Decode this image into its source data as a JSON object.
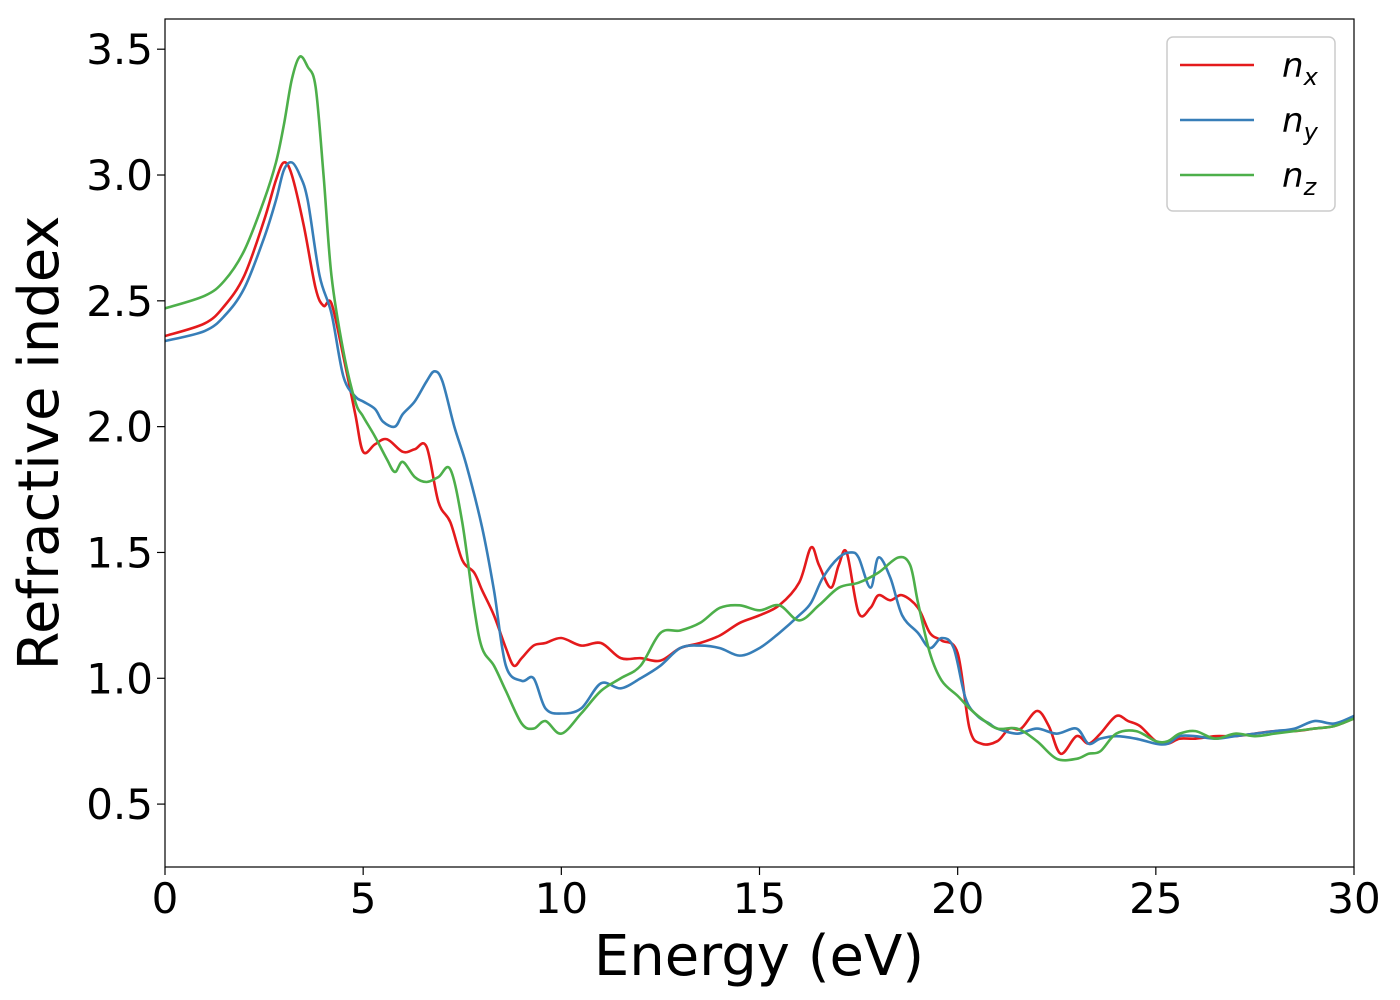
{
  "chart_data": {
    "type": "line",
    "title": "",
    "xlabel": "Energy (eV)",
    "ylabel": "Refractive index",
    "xlim": [
      0,
      30
    ],
    "ylim": [
      0.25,
      3.62
    ],
    "xticks": [
      0,
      5,
      10,
      15,
      20,
      25,
      30
    ],
    "xtick_labels": [
      "0",
      "5",
      "10",
      "15",
      "20",
      "25",
      "30"
    ],
    "yticks": [
      0.5,
      1.0,
      1.5,
      2.0,
      2.5,
      3.0,
      3.5
    ],
    "ytick_labels": [
      "0.5",
      "1.0",
      "1.5",
      "2.0",
      "2.5",
      "3.0",
      "3.5"
    ],
    "grid": false,
    "legend_position": "top-right",
    "series": [
      {
        "name": "n_x",
        "label_main": "n",
        "label_sub": "x",
        "color": "#e41a1c",
        "x": [
          0,
          1,
          1.5,
          2,
          2.5,
          2.8,
          3.0,
          3.2,
          3.5,
          3.8,
          4.0,
          4.2,
          4.5,
          4.8,
          5.0,
          5.3,
          5.6,
          6.0,
          6.3,
          6.6,
          6.9,
          7.2,
          7.5,
          7.8,
          8.0,
          8.3,
          8.6,
          8.8,
          9.0,
          9.3,
          9.6,
          10.0,
          10.5,
          11.0,
          11.5,
          12.0,
          12.5,
          13.0,
          13.5,
          14.0,
          14.5,
          15.0,
          15.5,
          16.0,
          16.3,
          16.5,
          16.8,
          17.0,
          17.2,
          17.5,
          17.8,
          18.0,
          18.3,
          18.6,
          19.0,
          19.3,
          19.6,
          20.0,
          20.3,
          20.6,
          21.0,
          21.3,
          21.6,
          22.0,
          22.3,
          22.6,
          23.0,
          23.3,
          23.6,
          24.0,
          24.3,
          24.6,
          25.0,
          25.3,
          25.6,
          26.0,
          26.5,
          27.0,
          27.5,
          28.0,
          28.5,
          29.0,
          29.5,
          30.0
        ],
        "y": [
          2.36,
          2.41,
          2.48,
          2.6,
          2.82,
          2.98,
          3.05,
          3.0,
          2.8,
          2.55,
          2.48,
          2.49,
          2.28,
          2.05,
          1.9,
          1.93,
          1.95,
          1.9,
          1.91,
          1.92,
          1.7,
          1.62,
          1.47,
          1.42,
          1.35,
          1.25,
          1.12,
          1.05,
          1.08,
          1.13,
          1.14,
          1.16,
          1.13,
          1.14,
          1.08,
          1.08,
          1.07,
          1.12,
          1.14,
          1.17,
          1.22,
          1.25,
          1.29,
          1.38,
          1.52,
          1.45,
          1.36,
          1.45,
          1.5,
          1.26,
          1.28,
          1.33,
          1.31,
          1.33,
          1.28,
          1.18,
          1.15,
          1.1,
          0.8,
          0.74,
          0.75,
          0.8,
          0.8,
          0.87,
          0.81,
          0.7,
          0.77,
          0.74,
          0.78,
          0.85,
          0.83,
          0.81,
          0.75,
          0.74,
          0.76,
          0.76,
          0.77,
          0.77,
          0.78,
          0.79,
          0.79,
          0.8,
          0.81,
          0.84
        ]
      },
      {
        "name": "n_y",
        "label_main": "n",
        "label_sub": "y",
        "color": "#377eb8",
        "x": [
          0,
          1,
          1.5,
          2,
          2.5,
          2.8,
          3.0,
          3.2,
          3.4,
          3.6,
          3.9,
          4.2,
          4.5,
          4.8,
          5.0,
          5.3,
          5.5,
          5.8,
          6.0,
          6.3,
          6.6,
          6.8,
          7.0,
          7.3,
          7.6,
          8.0,
          8.3,
          8.6,
          9.0,
          9.3,
          9.6,
          10.0,
          10.5,
          11.0,
          11.5,
          12.0,
          12.5,
          13.0,
          13.5,
          14.0,
          14.5,
          15.0,
          15.5,
          16.0,
          16.3,
          16.6,
          17.0,
          17.3,
          17.5,
          17.8,
          18.0,
          18.3,
          18.6,
          19.0,
          19.3,
          19.6,
          19.9,
          20.2,
          20.5,
          20.8,
          21.0,
          21.5,
          22.0,
          22.5,
          23.0,
          23.3,
          23.6,
          24.0,
          24.5,
          25.0,
          25.3,
          25.6,
          26.0,
          26.5,
          27.0,
          27.5,
          28.0,
          28.5,
          29.0,
          29.5,
          30.0
        ],
        "y": [
          2.34,
          2.38,
          2.44,
          2.55,
          2.75,
          2.9,
          3.02,
          3.05,
          3.0,
          2.9,
          2.6,
          2.45,
          2.2,
          2.12,
          2.1,
          2.07,
          2.02,
          2.0,
          2.05,
          2.1,
          2.18,
          2.22,
          2.18,
          2.0,
          1.85,
          1.6,
          1.35,
          1.05,
          0.99,
          1.0,
          0.88,
          0.86,
          0.88,
          0.98,
          0.96,
          1.0,
          1.05,
          1.12,
          1.13,
          1.12,
          1.09,
          1.12,
          1.18,
          1.25,
          1.3,
          1.4,
          1.48,
          1.5,
          1.48,
          1.36,
          1.48,
          1.4,
          1.25,
          1.18,
          1.12,
          1.16,
          1.12,
          0.92,
          0.85,
          0.82,
          0.8,
          0.78,
          0.8,
          0.78,
          0.8,
          0.74,
          0.76,
          0.77,
          0.76,
          0.74,
          0.74,
          0.77,
          0.77,
          0.76,
          0.77,
          0.78,
          0.79,
          0.8,
          0.83,
          0.82,
          0.85
        ]
      },
      {
        "name": "n_z",
        "label_main": "n",
        "label_sub": "z",
        "color": "#4daf4a",
        "x": [
          0,
          1,
          1.5,
          2,
          2.5,
          2.8,
          3.0,
          3.2,
          3.4,
          3.6,
          3.8,
          4.0,
          4.2,
          4.5,
          4.8,
          5.0,
          5.3,
          5.6,
          5.8,
          6.0,
          6.3,
          6.6,
          6.9,
          7.2,
          7.5,
          7.8,
          8.0,
          8.3,
          8.6,
          9.0,
          9.3,
          9.6,
          10.0,
          10.5,
          11.0,
          11.5,
          12.0,
          12.5,
          13.0,
          13.5,
          14.0,
          14.5,
          15.0,
          15.5,
          16.0,
          16.5,
          17.0,
          17.5,
          18.0,
          18.5,
          18.8,
          19.0,
          19.3,
          19.6,
          20.0,
          20.3,
          20.6,
          21.0,
          21.5,
          22.0,
          22.5,
          23.0,
          23.3,
          23.6,
          24.0,
          24.5,
          25.0,
          25.3,
          25.6,
          26.0,
          26.5,
          27.0,
          27.5,
          28.0,
          28.5,
          29.0,
          29.5,
          30.0
        ],
        "y": [
          2.47,
          2.52,
          2.58,
          2.7,
          2.9,
          3.05,
          3.2,
          3.38,
          3.47,
          3.43,
          3.35,
          3.0,
          2.6,
          2.3,
          2.1,
          2.04,
          1.96,
          1.87,
          1.82,
          1.86,
          1.8,
          1.78,
          1.8,
          1.83,
          1.62,
          1.28,
          1.12,
          1.05,
          0.95,
          0.82,
          0.8,
          0.83,
          0.78,
          0.86,
          0.95,
          1.0,
          1.05,
          1.18,
          1.19,
          1.22,
          1.28,
          1.29,
          1.27,
          1.29,
          1.23,
          1.29,
          1.36,
          1.38,
          1.42,
          1.48,
          1.45,
          1.3,
          1.1,
          0.99,
          0.93,
          0.88,
          0.84,
          0.8,
          0.8,
          0.75,
          0.68,
          0.68,
          0.7,
          0.71,
          0.78,
          0.79,
          0.75,
          0.75,
          0.78,
          0.79,
          0.76,
          0.78,
          0.77,
          0.78,
          0.79,
          0.8,
          0.81,
          0.84
        ]
      }
    ]
  }
}
